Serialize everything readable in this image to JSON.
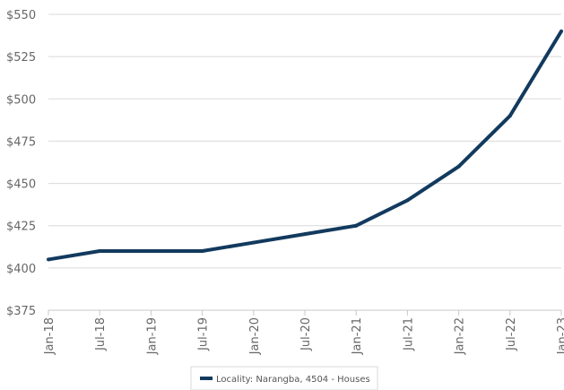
{
  "chart_data": {
    "type": "line",
    "title": "",
    "xlabel": "",
    "ylabel": "",
    "categories": [
      "Jan-18",
      "Jul-18",
      "Jan-19",
      "Jul-19",
      "Jan-20",
      "Jul-20",
      "Jan-21",
      "Jul-21",
      "Jan-22",
      "Jul-22",
      "Jan-23"
    ],
    "y_ticks": [
      "$375",
      "$400",
      "$425",
      "$450",
      "$475",
      "$500",
      "$525",
      "$550"
    ],
    "y_tick_values": [
      375,
      400,
      425,
      450,
      475,
      500,
      525,
      550
    ],
    "ylim": [
      375,
      550
    ],
    "grid": "horizontal",
    "legend_placement": "bottom-center",
    "series": [
      {
        "name": "Locality: Narangba, 4504 - Houses",
        "color": "#123a5e",
        "values": [
          405,
          410,
          410,
          410,
          415,
          420,
          425,
          440,
          460,
          490,
          540
        ]
      }
    ]
  },
  "colors": {
    "grid": "#d9d9d9",
    "axis": "#c8c8c8",
    "tick_text": "#666666",
    "line": "#123a5e"
  }
}
